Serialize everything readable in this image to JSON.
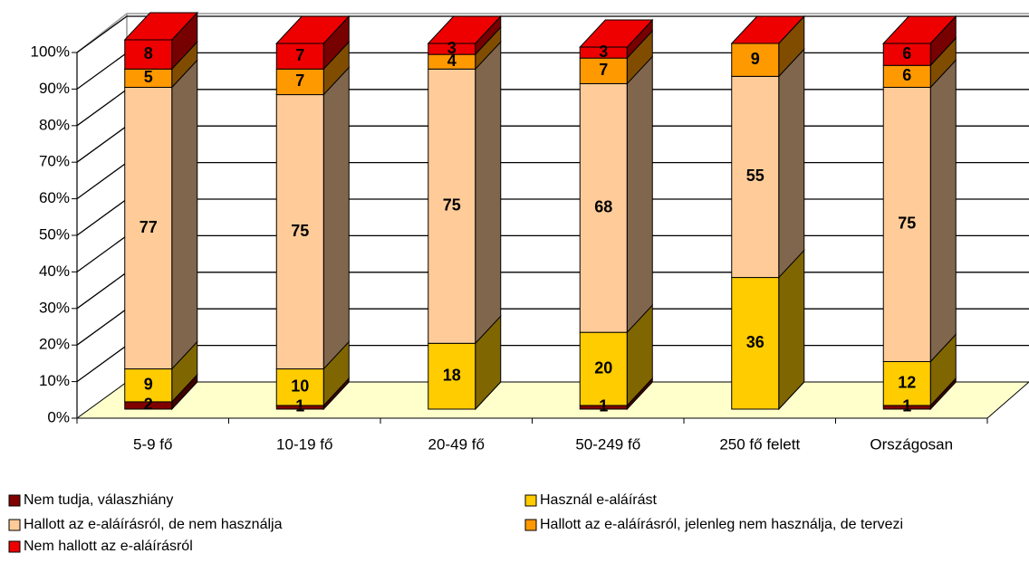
{
  "chart_data": {
    "type": "bar",
    "stacked": true,
    "categories": [
      "5-9 fő",
      "10-19 fő",
      "20-49 fő",
      "50-249 fő",
      "250 fő felett",
      "Országosan"
    ],
    "series": [
      {
        "name": "Nem tudja, válaszhiány",
        "color": "#800000",
        "values": [
          2,
          1,
          0,
          1,
          0,
          1
        ]
      },
      {
        "name": "Használ e-aláírást",
        "color": "#ffcc00",
        "values": [
          9,
          10,
          18,
          20,
          36,
          12
        ]
      },
      {
        "name": "Hallott az e-aláírásról, de nem használja",
        "color": "#ffcc99",
        "values": [
          77,
          75,
          75,
          68,
          55,
          75
        ]
      },
      {
        "name": "Hallott az e-aláírásról, jelenleg nem használja, de tervezi",
        "color": "#ff9900",
        "values": [
          5,
          7,
          4,
          7,
          9,
          6
        ]
      },
      {
        "name": "Nem hallott az e-aláírásról",
        "color": "#ee0000",
        "values": [
          8,
          7,
          3,
          3,
          0,
          6
        ]
      }
    ],
    "ylim": [
      0,
      100
    ],
    "yticks": [
      {
        "value": 0,
        "label": "0%"
      },
      {
        "value": 10,
        "label": "10%"
      },
      {
        "value": 20,
        "label": "20%"
      },
      {
        "value": 30,
        "label": "30%"
      },
      {
        "value": 40,
        "label": "40%"
      },
      {
        "value": 50,
        "label": "50%"
      },
      {
        "value": 60,
        "label": "60%"
      },
      {
        "value": 70,
        "label": "70%"
      },
      {
        "value": 80,
        "label": "80%"
      },
      {
        "value": 90,
        "label": "90%"
      },
      {
        "value": 100,
        "label": "100%"
      }
    ],
    "grid": true
  }
}
